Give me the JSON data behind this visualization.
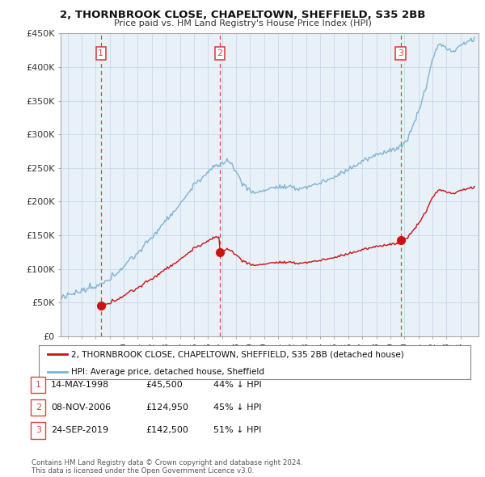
{
  "title": "2, THORNBROOK CLOSE, CHAPELTOWN, SHEFFIELD, S35 2BB",
  "subtitle": "Price paid vs. HM Land Registry's House Price Index (HPI)",
  "xlim_start": 1995.5,
  "xlim_end": 2025.3,
  "ylim_min": 0,
  "ylim_max": 450000,
  "yticks": [
    0,
    50000,
    100000,
    150000,
    200000,
    250000,
    300000,
    350000,
    400000,
    450000
  ],
  "ytick_labels": [
    "£0",
    "£50K",
    "£100K",
    "£150K",
    "£200K",
    "£250K",
    "£300K",
    "£350K",
    "£400K",
    "£450K"
  ],
  "sale_dates": [
    1998.37,
    2006.85,
    2019.73
  ],
  "sale_prices": [
    45500,
    124950,
    142500
  ],
  "sale_labels": [
    "1",
    "2",
    "3"
  ],
  "vline_color": "#dd4444",
  "sale_color": "#cc1111",
  "hpi_color": "#7fb3d3",
  "plot_bg": "#e8f0f8",
  "legend_sale": "2, THORNBROOK CLOSE, CHAPELTOWN, SHEFFIELD, S35 2BB (detached house)",
  "legend_hpi": "HPI: Average price, detached house, Sheffield",
  "table_data": [
    [
      "1",
      "14-MAY-1998",
      "£45,500",
      "44% ↓ HPI"
    ],
    [
      "2",
      "08-NOV-2006",
      "£124,950",
      "45% ↓ HPI"
    ],
    [
      "3",
      "24-SEP-2019",
      "£142,500",
      "51% ↓ HPI"
    ]
  ],
  "footnote": "Contains HM Land Registry data © Crown copyright and database right 2024.\nThis data is licensed under the Open Government Licence v3.0.",
  "background_color": "#ffffff",
  "grid_color": "#c8d8e8"
}
